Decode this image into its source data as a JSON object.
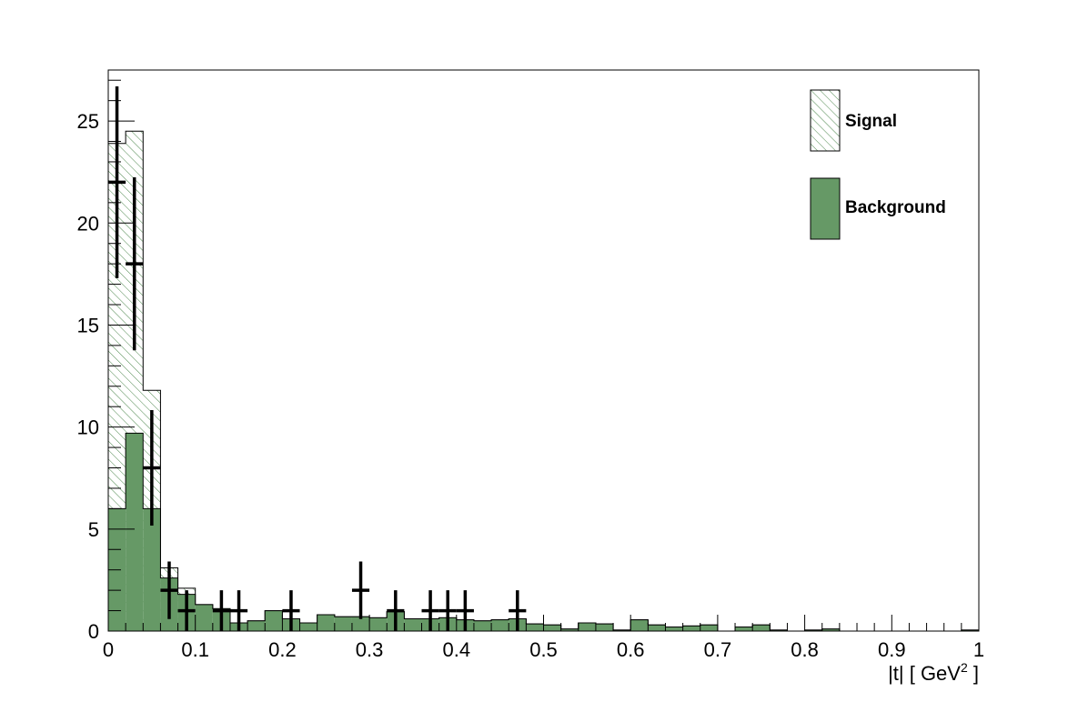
{
  "chart_data": {
    "type": "histogram",
    "xlabel": "|t|  [ GeV",
    "xlabel_sup": "2",
    "xlabel_end": " ]",
    "ylabel": "",
    "xlim": [
      0,
      1
    ],
    "ylim": [
      0,
      27.5
    ],
    "x_ticks": [
      0,
      0.1,
      0.2,
      0.3,
      0.4,
      0.5,
      0.6,
      0.7,
      0.8,
      0.9,
      1
    ],
    "x_tick_labels": [
      "0",
      "0.1",
      "0.2",
      "0.3",
      "0.4",
      "0.5",
      "0.6",
      "0.7",
      "0.8",
      "0.9",
      "1"
    ],
    "y_ticks": [
      0,
      5,
      10,
      15,
      20,
      25
    ],
    "y_tick_labels": [
      "0",
      "5",
      "10",
      "15",
      "20",
      "25"
    ],
    "grid": false,
    "legend_position": "top-right",
    "bin_width": 0.02,
    "series": [
      {
        "name": "Signal",
        "style": "hatched",
        "color": "#2e7d32",
        "bin_edges_start": 0,
        "values": [
          23.9,
          24.5,
          11.8,
          3.1,
          2.1,
          1.3,
          1.1,
          0.4,
          0.5,
          1.0,
          0.6,
          0.4,
          0.8,
          0.7,
          0.7,
          0.65,
          0.95,
          0.6,
          0.6,
          0.65,
          0.55,
          0.5,
          0.55,
          0.6,
          0.35,
          0.3,
          0.1,
          0.4,
          0.35,
          0.05,
          0.55,
          0.3,
          0.2,
          0.25,
          0.3,
          0.0,
          0.2,
          0.3,
          0.05,
          0.0,
          0.05,
          0.1,
          0.0,
          0.0,
          0.0,
          0.0,
          0.0,
          0.0,
          0.0,
          0.05
        ]
      },
      {
        "name": "Background",
        "style": "filled",
        "color": "#669966",
        "bin_edges_start": 0,
        "values": [
          6.0,
          9.7,
          6.0,
          2.6,
          1.8,
          1.3,
          1.1,
          0.4,
          0.5,
          1.0,
          0.6,
          0.4,
          0.8,
          0.7,
          0.7,
          0.65,
          0.95,
          0.6,
          0.6,
          0.65,
          0.55,
          0.5,
          0.55,
          0.6,
          0.35,
          0.3,
          0.1,
          0.4,
          0.35,
          0.05,
          0.55,
          0.3,
          0.2,
          0.25,
          0.3,
          0.0,
          0.2,
          0.3,
          0.05,
          0.0,
          0.05,
          0.1,
          0.0,
          0.0,
          0.0,
          0.0,
          0.0,
          0.0,
          0.0,
          0.05
        ]
      },
      {
        "name": "",
        "style": "points-with-errors",
        "color": "#000000",
        "points": [
          {
            "x": 0.01,
            "y": 22,
            "err": 4.7
          },
          {
            "x": 0.03,
            "y": 18,
            "err": 4.24
          },
          {
            "x": 0.05,
            "y": 8,
            "err": 2.83
          },
          {
            "x": 0.07,
            "y": 2,
            "err": 1.41
          },
          {
            "x": 0.09,
            "y": 1,
            "err": 1
          },
          {
            "x": 0.13,
            "y": 1,
            "err": 1
          },
          {
            "x": 0.15,
            "y": 1,
            "err": 1
          },
          {
            "x": 0.21,
            "y": 1,
            "err": 1
          },
          {
            "x": 0.29,
            "y": 2,
            "err": 1.41
          },
          {
            "x": 0.33,
            "y": 1,
            "err": 1
          },
          {
            "x": 0.37,
            "y": 1,
            "err": 1
          },
          {
            "x": 0.39,
            "y": 1,
            "err": 1
          },
          {
            "x": 0.41,
            "y": 1,
            "err": 1
          },
          {
            "x": 0.47,
            "y": 1,
            "err": 1
          }
        ]
      }
    ]
  }
}
